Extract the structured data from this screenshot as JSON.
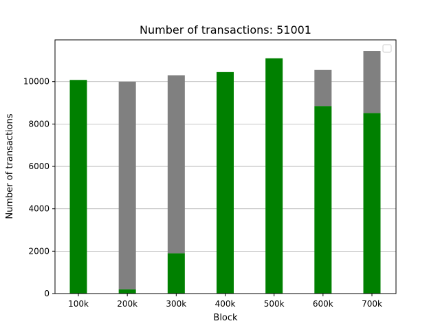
{
  "chart_data": {
    "type": "bar",
    "stacked": true,
    "title": "Number of transactions: 51001",
    "xlabel": "Block",
    "ylabel": "Number of transactions",
    "categories": [
      "100k",
      "200k",
      "300k",
      "400k",
      "500k",
      "600k",
      "700k"
    ],
    "series": [
      {
        "color": "#008000",
        "values": [
          10080,
          200,
          1900,
          10450,
          11100,
          8850,
          8520
        ]
      },
      {
        "color": "#808080",
        "values": [
          0,
          9800,
          8400,
          0,
          0,
          1700,
          2930
        ]
      }
    ],
    "ylim": [
      0,
      11970
    ],
    "yticks": [
      0,
      2000,
      4000,
      6000,
      8000,
      10000
    ],
    "ytick_labels": [
      "0",
      "2000",
      "4000",
      "6000",
      "8000",
      "10000"
    ],
    "grid": "y",
    "legend": "top-right, empty"
  }
}
